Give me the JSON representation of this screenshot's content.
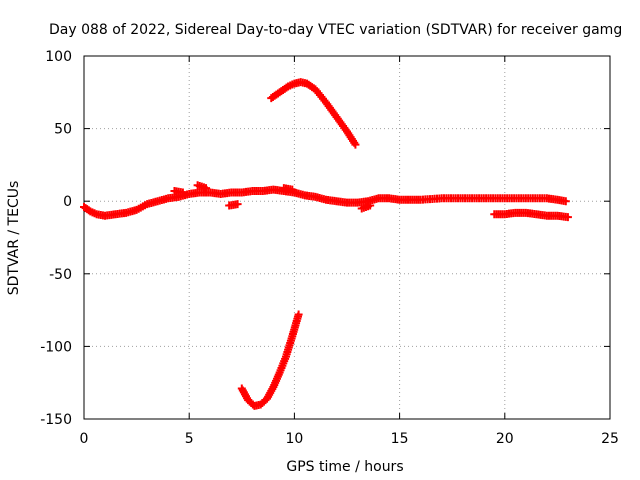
{
  "chart_data": {
    "type": "scatter",
    "title": "Day 088 of 2022, Sidereal Day-to-day VTEC variation (SDTVAR) for receiver gamg",
    "xlabel": "GPS time / hours",
    "ylabel": "SDTVAR / TECUs",
    "xlim": [
      0,
      25
    ],
    "ylim": [
      -150,
      100
    ],
    "x_ticks": [
      0,
      5,
      10,
      15,
      20,
      25
    ],
    "y_ticks": [
      -150,
      -100,
      -50,
      0,
      50,
      100
    ],
    "x_tick_labels": [
      "0",
      "5",
      "10",
      "15",
      "20",
      "25"
    ],
    "y_tick_labels": [
      "-150",
      "-100",
      "-50",
      "0",
      "50",
      "100"
    ],
    "grid": true,
    "marker": "+",
    "color": "#ff0000",
    "series": [
      {
        "name": "main-band",
        "x": [
          0.0,
          0.3,
          0.6,
          1.0,
          1.5,
          2.0,
          2.5,
          3.0,
          3.5,
          4.0,
          4.5,
          5.0,
          5.5,
          6.0,
          6.5,
          7.0,
          7.5,
          8.0,
          8.5,
          9.0,
          9.5,
          10.0,
          10.5,
          11.0,
          11.5,
          12.0,
          12.5,
          13.0,
          13.5,
          14.0,
          14.5,
          15.0,
          15.5,
          16.0,
          17.0,
          18.0,
          19.0,
          20.0,
          21.0,
          22.0,
          22.5,
          22.9
        ],
        "y": [
          -4,
          -7,
          -9,
          -10,
          -9,
          -8,
          -6,
          -2,
          0,
          2,
          3,
          5,
          6,
          6,
          5,
          6,
          6,
          7,
          7,
          8,
          7,
          6,
          4,
          3,
          1,
          0,
          -1,
          -1,
          0,
          2,
          2,
          1,
          1,
          1,
          2,
          2,
          2,
          2,
          2,
          2,
          1,
          0
        ]
      },
      {
        "name": "lower-offset-band",
        "x": [
          19.5,
          20.0,
          20.5,
          21.0,
          21.5,
          22.0,
          22.5,
          23.0
        ],
        "y": [
          -9,
          -9,
          -8,
          -8,
          -9,
          -10,
          -10,
          -11
        ]
      },
      {
        "name": "scattered-short-arcs",
        "x": [
          4.3,
          4.7,
          5.4,
          5.8,
          6.9,
          7.3,
          9.5,
          9.9,
          13.2,
          13.6
        ],
        "y": [
          7,
          6,
          11,
          9,
          -3,
          -2,
          9,
          8,
          -5,
          -3
        ]
      },
      {
        "name": "upper-arc",
        "x": [
          8.9,
          9.3,
          9.7,
          10.0,
          10.3,
          10.6,
          11.0,
          11.5,
          12.0,
          12.5,
          12.9
        ],
        "y": [
          71,
          75,
          79,
          81,
          82,
          81,
          77,
          68,
          58,
          48,
          39
        ]
      },
      {
        "name": "lower-arc",
        "x": [
          7.5,
          7.8,
          8.1,
          8.4,
          8.7,
          9.0,
          9.3,
          9.6,
          9.9,
          10.2
        ],
        "y": [
          -129,
          -137,
          -141,
          -140,
          -136,
          -128,
          -118,
          -107,
          -93,
          -78
        ]
      }
    ]
  }
}
